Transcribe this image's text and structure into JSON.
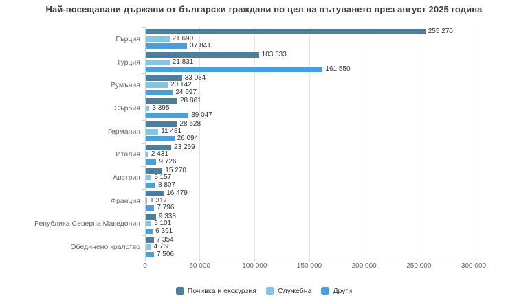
{
  "chart_data": {
    "type": "bar",
    "orientation": "horizontal",
    "title": "Най-посещавани държави от български граждани по цел на пътуването през август 2025 година",
    "categories": [
      "Гърция",
      "Турция",
      "Румъния",
      "Сърбия",
      "Германия",
      "Италия",
      "Австрия",
      "Франция",
      "Република Северна Македония",
      "Обединено кралство"
    ],
    "series": [
      {
        "name": "Почивка и екскурзия",
        "color": "#4d7d9c",
        "values": [
          255270,
          103333,
          33084,
          28861,
          28528,
          23269,
          15270,
          16479,
          9338,
          7354
        ],
        "labels": [
          "255 270",
          "103 333",
          "33 084",
          "28 861",
          "28 528",
          "23 269",
          "15 270",
          "16 479",
          "9 338",
          "7 354"
        ]
      },
      {
        "name": "Служебна",
        "color": "#85c5e3",
        "values": [
          21690,
          21831,
          20142,
          3395,
          11481,
          2431,
          5157,
          1317,
          5101,
          4768
        ],
        "labels": [
          "21 690",
          "21 831",
          "20 142",
          "3 395",
          "11 481",
          "2 431",
          "5 157",
          "1 317",
          "5 101",
          "4 768"
        ]
      },
      {
        "name": "Други",
        "color": "#4a9fd9",
        "values": [
          37841,
          161550,
          24697,
          39047,
          26094,
          9726,
          8807,
          7796,
          6391,
          7506
        ],
        "labels": [
          "37 841",
          "161 550",
          "24 697",
          "39 047",
          "26 094",
          "9 726",
          "8 807",
          "7 796",
          "6 391",
          "7 506"
        ]
      }
    ],
    "xlim": [
      0,
      300000
    ],
    "xticks": {
      "values": [
        0,
        50000,
        100000,
        150000,
        200000,
        250000,
        300000
      ],
      "labels": [
        "0",
        "50 000",
        "100 000",
        "150 000",
        "200 000",
        "250 000",
        "300 000"
      ]
    },
    "grid": "vertical-on",
    "legend_position": "bottom-center"
  }
}
